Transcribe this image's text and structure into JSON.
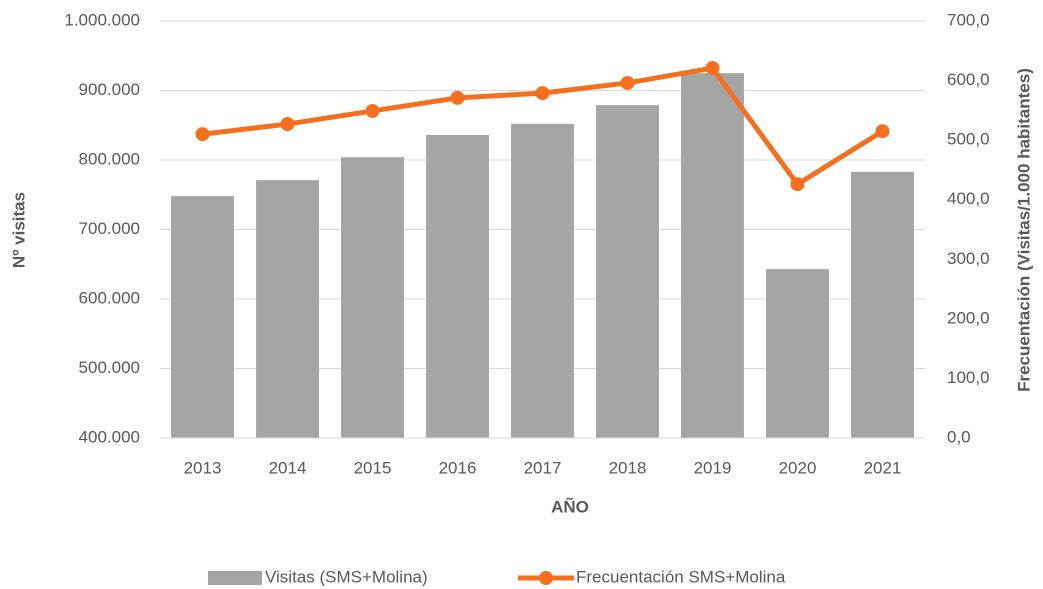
{
  "chart_data": {
    "type": "bar-line",
    "xlabel": "AÑO",
    "ylabel": "Nº visitas",
    "y2label": "Frecuentación (Visitas/1.000 habitantes)",
    "categories": [
      "2013",
      "2014",
      "2015",
      "2016",
      "2017",
      "2018",
      "2019",
      "2020",
      "2021"
    ],
    "series": [
      {
        "name": "Visitas (SMS+Molina)",
        "type": "bar",
        "color": "#a5a5a5",
        "values": [
          748000,
          771000,
          804000,
          836000,
          852000,
          879000,
          925000,
          643000,
          783000
        ]
      },
      {
        "name": "Frecuentación SMS+Molina",
        "type": "line",
        "axis": "y2",
        "color": "#f4701e",
        "values": [
          510,
          527,
          549,
          571,
          579,
          596,
          621,
          426,
          515
        ]
      }
    ],
    "ylim": [
      400000,
      1000000
    ],
    "yticks": [
      {
        "value": 400000,
        "label": "400.000"
      },
      {
        "value": 500000,
        "label": "500.000"
      },
      {
        "value": 600000,
        "label": "600.000"
      },
      {
        "value": 700000,
        "label": "700.000"
      },
      {
        "value": 800000,
        "label": "800.000"
      },
      {
        "value": 900000,
        "label": "900.000"
      },
      {
        "value": 1000000,
        "label": "1.000.000"
      }
    ],
    "y2lim": [
      0,
      700
    ],
    "y2ticks": [
      {
        "value": 0,
        "label": "0,0"
      },
      {
        "value": 100,
        "label": "100,0"
      },
      {
        "value": 200,
        "label": "200,0"
      },
      {
        "value": 300,
        "label": "300,0"
      },
      {
        "value": 400,
        "label": "400,0"
      },
      {
        "value": 500,
        "label": "500,0"
      },
      {
        "value": 600,
        "label": "600,0"
      },
      {
        "value": 700,
        "label": "700,0"
      }
    ],
    "grid": true,
    "legend": "bottom"
  }
}
